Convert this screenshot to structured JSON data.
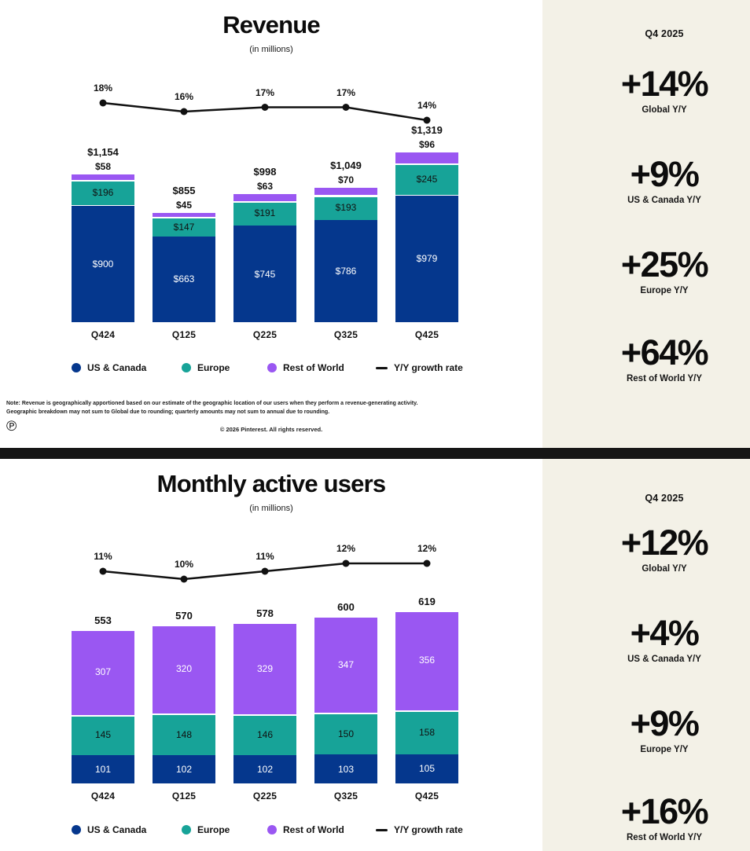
{
  "page": {
    "background": "#ffffff",
    "sidebar_bg": "#f3f1e7",
    "divider_color": "#161616"
  },
  "icons": {
    "pinterest_logo": "℗"
  },
  "legend_items": [
    {
      "label": "US & Canada",
      "swatch": "circle",
      "color": "#05378d"
    },
    {
      "label": "Europe",
      "swatch": "circle",
      "color": "#17a398"
    },
    {
      "label": "Rest of World",
      "swatch": "circle",
      "color": "#9a57f2"
    },
    {
      "label": "Y/Y growth rate",
      "swatch": "line",
      "color": "#111111"
    }
  ],
  "chart_data": [
    {
      "type": "stacked-bar-with-line",
      "title": "Revenue",
      "subtitle": "(in millions)",
      "categories": [
        "Q424",
        "Q125",
        "Q225",
        "Q325",
        "Q425"
      ],
      "series": [
        {
          "name": "US & Canada",
          "color": "#05378d",
          "values": [
            900,
            663,
            745,
            786,
            979
          ],
          "labels": [
            "$900",
            "$663",
            "$745",
            "$786",
            "$979"
          ],
          "label_color": "#ffffff"
        },
        {
          "name": "Europe",
          "color": "#17a398",
          "values": [
            196,
            147,
            191,
            193,
            245
          ],
          "labels": [
            "$196",
            "$147",
            "$191",
            "$193",
            "$245"
          ],
          "label_color": "#111111"
        },
        {
          "name": "Rest of World",
          "color": "#9a57f2",
          "values": [
            58,
            45,
            63,
            70,
            96
          ],
          "labels": null,
          "above_labels": [
            "$58",
            "$45",
            "$63",
            "$70",
            "$96"
          ]
        }
      ],
      "totals": {
        "values": [
          1154,
          855,
          998,
          1049,
          1319
        ],
        "labels": [
          "$1,154",
          "$855",
          "$998",
          "$1,049",
          "$1,319"
        ]
      },
      "growth_line": {
        "name": "Y/Y growth rate",
        "color": "#111111",
        "values_pct": [
          18,
          16,
          17,
          17,
          14
        ],
        "labels": [
          "18%",
          "16%",
          "17%",
          "17%",
          "14%"
        ]
      },
      "legend_position": "bottom",
      "sidebar": {
        "period": "Q4 2025",
        "stats": [
          {
            "value": "+14%",
            "label": "Global Y/Y"
          },
          {
            "value": "+9%",
            "label": "US & Canada Y/Y"
          },
          {
            "value": "+25%",
            "label": "Europe Y/Y"
          },
          {
            "value": "+64%",
            "label": "Rest of World Y/Y"
          }
        ]
      },
      "note_lines": [
        "Note: Revenue is geographically apportioned based on our estimate of the geographic location of our users when they perform a revenue-generating activity.",
        "Geographic breakdown may not sum to Global due to rounding; quarterly amounts may not sum to annual due to rounding."
      ],
      "copyright": "© 2026 Pinterest. All rights reserved."
    },
    {
      "type": "stacked-bar-with-line",
      "title": "Monthly active users",
      "subtitle": "(in millions)",
      "categories": [
        "Q424",
        "Q125",
        "Q225",
        "Q325",
        "Q425"
      ],
      "series": [
        {
          "name": "US & Canada",
          "color": "#05378d",
          "values": [
            101,
            102,
            102,
            103,
            105
          ],
          "labels": [
            "101",
            "102",
            "102",
            "103",
            "105"
          ],
          "label_color": "#ffffff"
        },
        {
          "name": "Europe",
          "color": "#17a398",
          "values": [
            145,
            148,
            146,
            150,
            158
          ],
          "labels": [
            "145",
            "148",
            "146",
            "150",
            "158"
          ],
          "label_color": "#111111"
        },
        {
          "name": "Rest of World",
          "color": "#9a57f2",
          "values": [
            307,
            320,
            329,
            347,
            356
          ],
          "labels": [
            "307",
            "320",
            "329",
            "347",
            "356"
          ],
          "label_color": "#ffffff"
        }
      ],
      "totals": {
        "values": [
          553,
          570,
          578,
          600,
          619
        ],
        "labels": [
          "553",
          "570",
          "578",
          "600",
          "619"
        ]
      },
      "growth_line": {
        "name": "Y/Y growth rate",
        "color": "#111111",
        "values_pct": [
          11,
          10,
          11,
          12,
          12
        ],
        "labels": [
          "11%",
          "10%",
          "11%",
          "12%",
          "12%"
        ]
      },
      "legend_position": "bottom",
      "sidebar": {
        "period": "Q4 2025",
        "stats": [
          {
            "value": "+12%",
            "label": "Global Y/Y"
          },
          {
            "value": "+4%",
            "label": "US & Canada Y/Y"
          },
          {
            "value": "+9%",
            "label": "Europe Y/Y"
          },
          {
            "value": "+16%",
            "label": "Rest of World Y/Y"
          }
        ]
      }
    }
  ]
}
